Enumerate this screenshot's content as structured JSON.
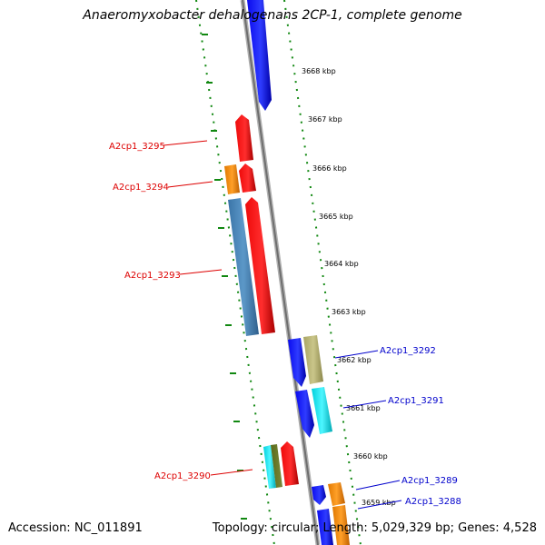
{
  "header": {
    "title": "Anaeromyxobacter dehalogenans 2CP-1, complete genome"
  },
  "footer": {
    "accession": "Accession: NC_011891",
    "topology": "Topology: circular; Length: 5,029,329 bp; Genes: 4,528"
  },
  "ruler": {
    "ticks": [
      {
        "label": "3668 kbp"
      },
      {
        "label": "3667 kbp"
      },
      {
        "label": "3666 kbp"
      },
      {
        "label": "3665 kbp"
      },
      {
        "label": "3664 kbp"
      },
      {
        "label": "3663 kbp"
      },
      {
        "label": "3662 kbp"
      },
      {
        "label": "3661 kbp"
      },
      {
        "label": "3660 kbp"
      },
      {
        "label": "3659 kbp"
      }
    ]
  },
  "colors": {
    "forward_label": "#dd0000",
    "reverse_label": "#0000cc",
    "backbone": "#8a8a8a",
    "dots": "#118811",
    "blue": "#0a0aee",
    "red": "#ee0a0a",
    "steel": "#4a86b8",
    "orange": "#f08c0a",
    "khaki": "#b8b478",
    "cyan": "#10e6f0",
    "olive": "#6a7a2a"
  },
  "genes": {
    "forward": [
      {
        "label": "A2cp1_3295"
      },
      {
        "label": "A2cp1_3294"
      },
      {
        "label": "A2cp1_3293"
      },
      {
        "label": "A2cp1_3290"
      }
    ],
    "reverse": [
      {
        "label": "A2cp1_3292"
      },
      {
        "label": "A2cp1_3291"
      },
      {
        "label": "A2cp1_3289"
      },
      {
        "label": "A2cp1_3288"
      }
    ]
  }
}
